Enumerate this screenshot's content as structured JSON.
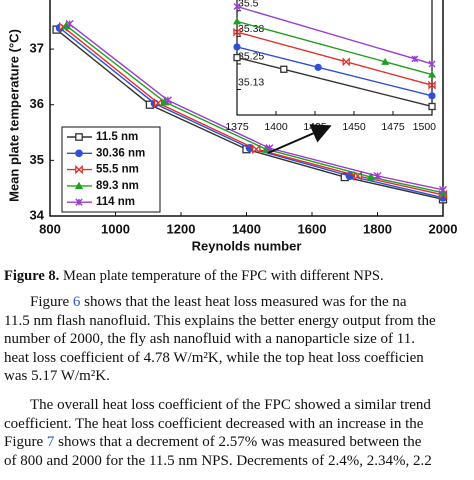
{
  "chart_data": [
    {
      "type": "line",
      "x_label": "Reynolds number",
      "y_label": "Mean plate temperature (°C)",
      "xlim": [
        800,
        2000
      ],
      "xticks": [
        800,
        1000,
        1200,
        1400,
        1600,
        1800,
        2000
      ],
      "ylim": [
        34,
        37.9
      ],
      "yticks": [
        34,
        35,
        36,
        37
      ],
      "legend": "lower-left",
      "series": [
        {
          "name": "11.5 nm",
          "color": "#333333",
          "marker": "square-open",
          "x": [
            820,
            1105,
            1400,
            1700,
            2000
          ],
          "values": [
            37.35,
            36.0,
            35.2,
            34.7,
            34.3
          ]
        },
        {
          "name": "30.36 nm",
          "color": "#2f4fd8",
          "marker": "circle",
          "x": [
            830,
            1120,
            1410,
            1715,
            2000
          ],
          "values": [
            37.38,
            36.02,
            35.22,
            34.72,
            34.33
          ]
        },
        {
          "name": "55.5 nm",
          "color": "#e0302a",
          "marker": "bowtie",
          "x": [
            840,
            1130,
            1430,
            1740,
            2000
          ],
          "values": [
            37.4,
            36.03,
            35.2,
            34.72,
            34.38
          ]
        },
        {
          "name": "89.3 nm",
          "color": "#1fa01f",
          "marker": "triangle",
          "x": [
            850,
            1150,
            1460,
            1780,
            2000
          ],
          "values": [
            37.42,
            36.05,
            35.2,
            34.7,
            34.42
          ]
        },
        {
          "name": "114 nm",
          "color": "#9a3cd0",
          "marker": "x",
          "x": [
            860,
            1160,
            1470,
            1800,
            2000
          ],
          "values": [
            37.45,
            36.08,
            35.22,
            34.72,
            34.47
          ]
        }
      ]
    },
    {
      "type": "line",
      "xlim": [
        1375,
        1500
      ],
      "xticks": [
        1375,
        1400,
        1425,
        1450,
        1475,
        1500
      ],
      "ylim": [
        35.01,
        35.56
      ],
      "yticks": [
        35.13,
        35.25,
        35.38,
        35.5
      ],
      "series": [
        {
          "color": "#333333",
          "marker": "square-open",
          "x": [
            1375,
            1405,
            1500
          ],
          "values": [
            35.28,
            35.225,
            35.05
          ]
        },
        {
          "color": "#2f4fd8",
          "marker": "circle",
          "x": [
            1375,
            1427,
            1500
          ],
          "values": [
            35.33,
            35.234,
            35.1
          ]
        },
        {
          "color": "#e0302a",
          "marker": "bowtie",
          "x": [
            1375,
            1445,
            1500
          ],
          "values": [
            35.4,
            35.26,
            35.15
          ]
        },
        {
          "color": "#1fa01f",
          "marker": "triangle",
          "x": [
            1375,
            1470,
            1500
          ],
          "values": [
            35.45,
            35.26,
            35.2
          ]
        },
        {
          "color": "#9a3cd0",
          "marker": "x",
          "x": [
            1375,
            1489,
            1500
          ],
          "values": [
            35.52,
            35.274,
            35.25
          ]
        }
      ]
    }
  ],
  "caption": {
    "label": "Figure 8.",
    "text": " Mean plate temperature of the FPC with different NPS."
  },
  "paragraphs": [
    {
      "lines": [
        [
          "Figure ",
          "6",
          " shows that the least heat loss measured was for the na"
        ],
        [
          "11.5 nm flash nanofluid. This explains the better energy output from the"
        ],
        [
          "number of 2000, the fly ash nanofluid with a nanoparticle size of 11."
        ],
        [
          "heat loss coefficient of 4.78 W/m²K, while the top heat loss coefficien"
        ],
        [
          "was 5.17 W/m²K."
        ]
      ]
    },
    {
      "lines": [
        [
          "The overall heat loss coefficient of the FPC showed a similar trend"
        ],
        [
          "coefficient. The heat loss coefficient decreased with an increase in the"
        ],
        [
          "Figure ",
          "7",
          " shows that a decrement of 2.57% was measured between the"
        ],
        [
          "of 800 and 2000 for the 11.5 nm NPS. Decrements of 2.4%, 2.34%, 2.2"
        ]
      ]
    }
  ]
}
